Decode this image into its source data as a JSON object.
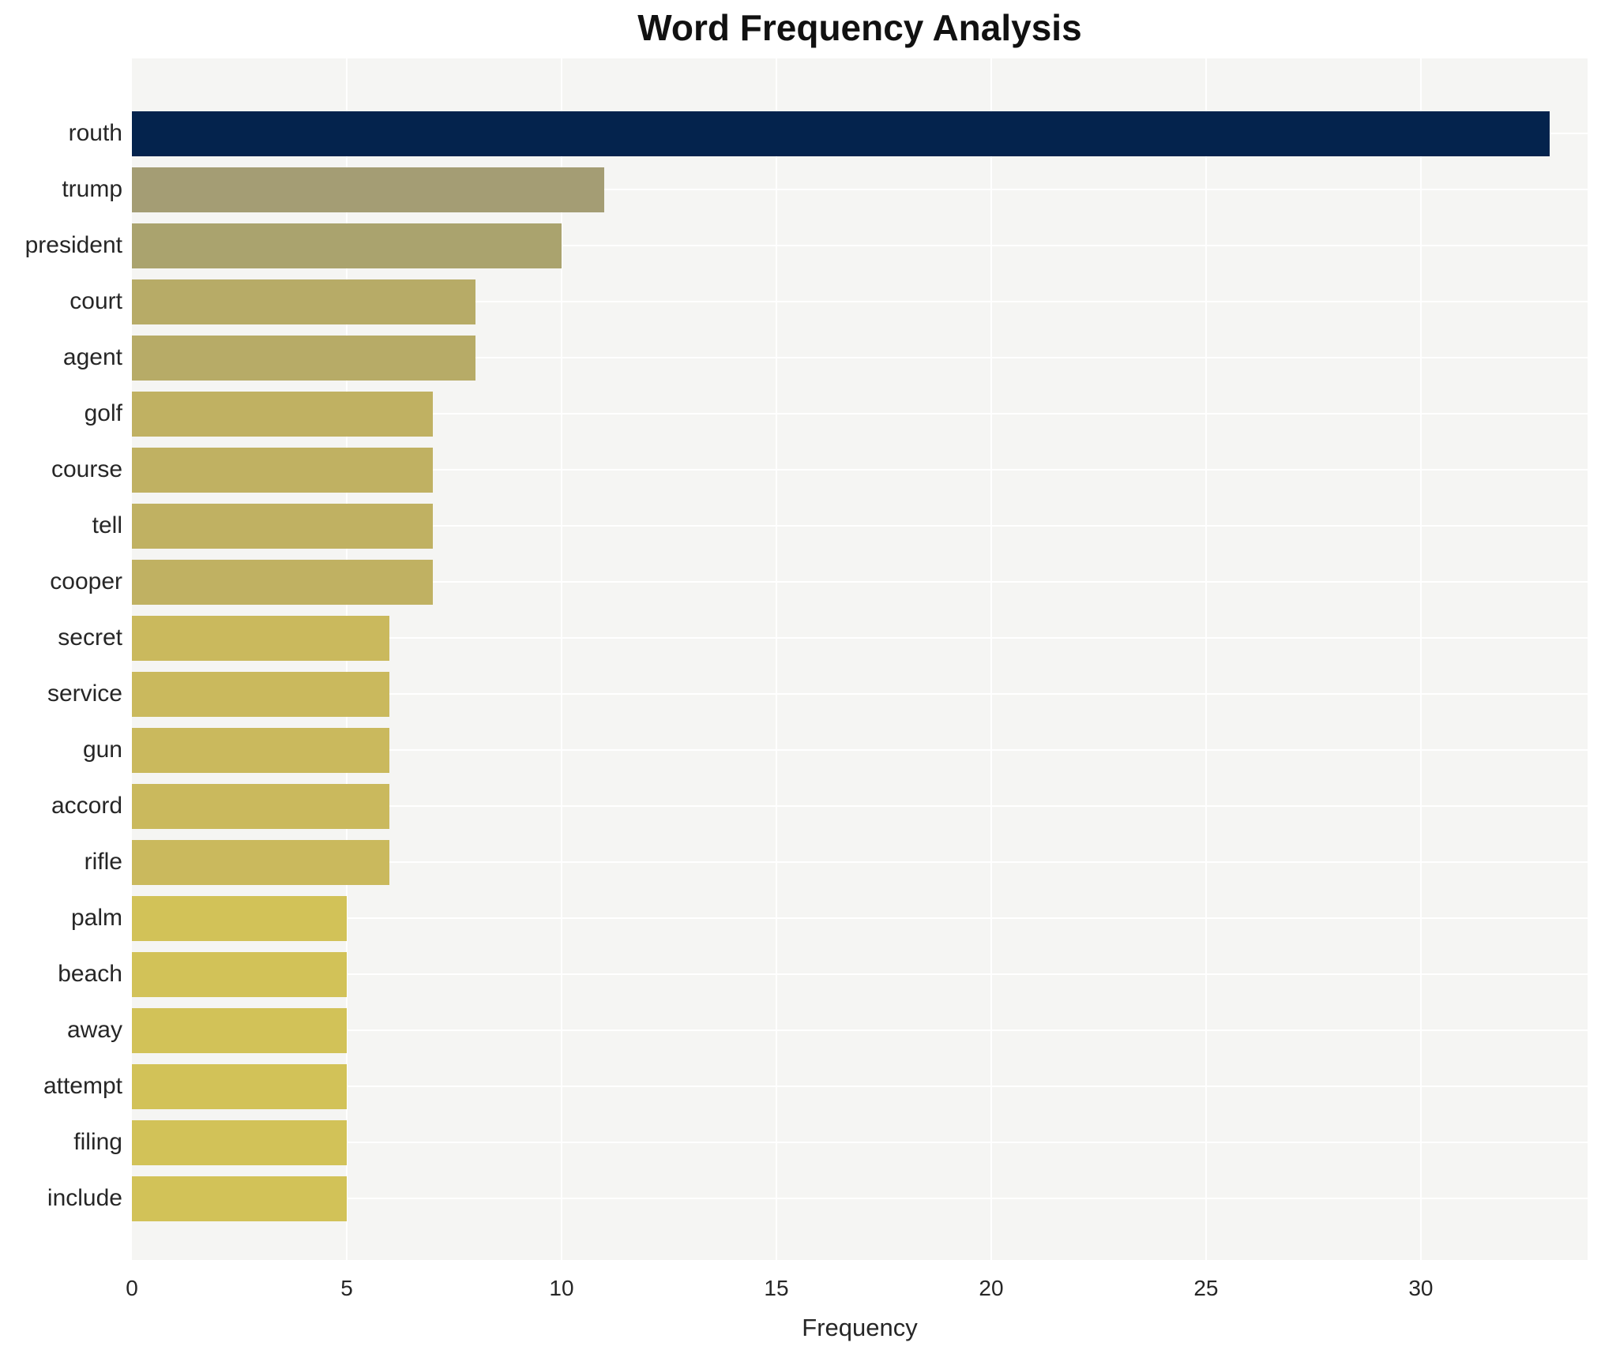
{
  "chart_data": {
    "type": "bar",
    "orientation": "horizontal",
    "title": "Word Frequency Analysis",
    "xlabel": "Frequency",
    "categories": [
      "routh",
      "trump",
      "president",
      "court",
      "agent",
      "golf",
      "course",
      "tell",
      "cooper",
      "secret",
      "service",
      "gun",
      "accord",
      "rifle",
      "palm",
      "beach",
      "away",
      "attempt",
      "filing",
      "include"
    ],
    "values": [
      33,
      11,
      10,
      8,
      8,
      7,
      7,
      7,
      7,
      6,
      6,
      6,
      6,
      6,
      5,
      5,
      5,
      5,
      5,
      5
    ],
    "bar_colors": [
      "#04234d",
      "#a49d74",
      "#aaa36e",
      "#b7ab67",
      "#b7ab67",
      "#c0b162",
      "#c0b162",
      "#c0b162",
      "#c0b162",
      "#cab95d",
      "#cab95d",
      "#cab95d",
      "#cab95d",
      "#cab95d",
      "#d2c258",
      "#d2c258",
      "#d2c258",
      "#d2c258",
      "#d2c258",
      "#d2c258"
    ],
    "x_ticks": [
      0,
      5,
      10,
      15,
      20,
      25,
      30
    ],
    "xlim": [
      0,
      33.88
    ],
    "grid": true,
    "plot_background": "#f5f5f3",
    "grid_color": "#ffffff",
    "legend": "none"
  }
}
